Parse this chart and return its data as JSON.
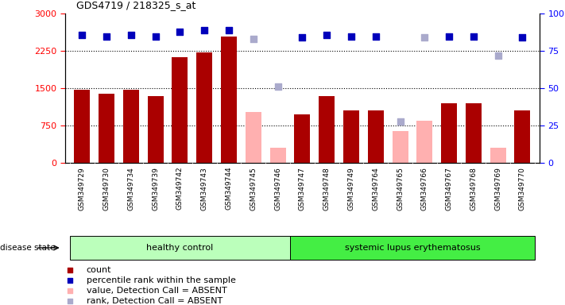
{
  "title": "GDS4719 / 218325_s_at",
  "samples": [
    "GSM349729",
    "GSM349730",
    "GSM349734",
    "GSM349739",
    "GSM349742",
    "GSM349743",
    "GSM349744",
    "GSM349745",
    "GSM349746",
    "GSM349747",
    "GSM349748",
    "GSM349749",
    "GSM349764",
    "GSM349765",
    "GSM349766",
    "GSM349767",
    "GSM349768",
    "GSM349769",
    "GSM349770"
  ],
  "count_values": [
    1470,
    1390,
    1470,
    1340,
    2120,
    2230,
    2550,
    null,
    null,
    980,
    1350,
    1060,
    1060,
    null,
    null,
    1200,
    1200,
    null,
    1060
  ],
  "count_absent": [
    null,
    null,
    null,
    null,
    null,
    null,
    null,
    1020,
    310,
    null,
    null,
    null,
    null,
    640,
    860,
    null,
    null,
    310,
    null
  ],
  "percentile_present": [
    86,
    85,
    86,
    85,
    88,
    89,
    89,
    null,
    null,
    84,
    86,
    85,
    85,
    null,
    null,
    85,
    85,
    null,
    84
  ],
  "percentile_absent": [
    null,
    null,
    null,
    null,
    null,
    null,
    null,
    83,
    51,
    null,
    null,
    null,
    null,
    28,
    84,
    null,
    null,
    72,
    null
  ],
  "n_healthy": 9,
  "n_lupus": 10,
  "ylim_left": [
    0,
    3000
  ],
  "ylim_right": [
    0,
    100
  ],
  "yticks_left": [
    0,
    750,
    1500,
    2250,
    3000
  ],
  "yticks_right": [
    0,
    25,
    50,
    75,
    100
  ],
  "bar_color_present": "#aa0000",
  "bar_color_absent": "#ffb0b0",
  "dot_color_present": "#0000bb",
  "dot_color_absent": "#aaaacc",
  "healthy_box_color": "#bbffbb",
  "lupus_box_color": "#44ee44",
  "label_bg_color": "#cccccc",
  "axis_bg_color": "#ffffff"
}
